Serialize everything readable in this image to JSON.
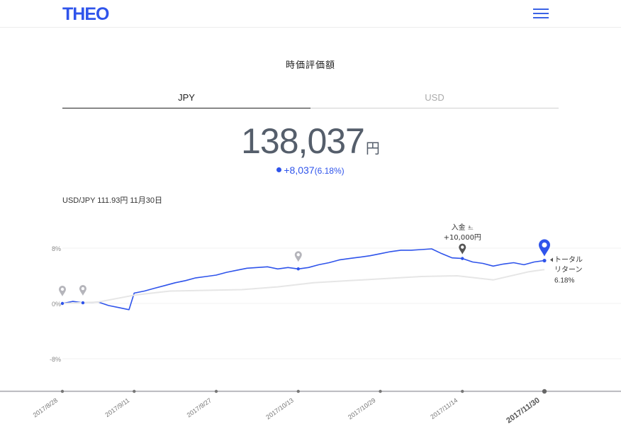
{
  "header": {
    "logo": "THEO",
    "menu_icon": "hamburger-icon"
  },
  "page": {
    "title": "時価評価額"
  },
  "tabs": [
    {
      "label": "JPY",
      "active": true
    },
    {
      "label": "USD",
      "active": false
    }
  ],
  "valuation": {
    "amount": "138,037",
    "unit": "円"
  },
  "change": {
    "amount": "+8,037",
    "percent": "(6.18%)"
  },
  "fx_rate": "USD/JPY 111.93円 11月30日",
  "colors": {
    "accent": "#2f54eb",
    "benchmark": "#e6e6e6",
    "axis": "#888888"
  },
  "chart_data": {
    "type": "line",
    "y_tick_labels": [
      "8%",
      "0%",
      "-8%"
    ],
    "ylim": [
      -12,
      10
    ],
    "x_tick_labels": [
      "2017/8/28",
      "2017/9/11",
      "2017/9/27",
      "2017/10/13",
      "2017/10/29",
      "2017/11/14",
      "2017/11/30"
    ],
    "series": [
      {
        "role": "portfolio",
        "x": [
          "2017/8/28",
          "2017/8/30",
          "2017/9/1",
          "2017/9/4",
          "2017/9/6",
          "2017/9/8",
          "2017/9/10",
          "2017/9/11",
          "2017/9/13",
          "2017/9/15",
          "2017/9/17",
          "2017/9/19",
          "2017/9/21",
          "2017/9/23",
          "2017/9/25",
          "2017/9/27",
          "2017/9/29",
          "2017/10/1",
          "2017/10/3",
          "2017/10/5",
          "2017/10/7",
          "2017/10/9",
          "2017/10/11",
          "2017/10/13",
          "2017/10/15",
          "2017/10/17",
          "2017/10/19",
          "2017/10/21",
          "2017/10/23",
          "2017/10/25",
          "2017/10/27",
          "2017/10/29",
          "2017/10/31",
          "2017/11/2",
          "2017/11/4",
          "2017/11/6",
          "2017/11/8",
          "2017/11/10",
          "2017/11/12",
          "2017/11/14",
          "2017/11/16",
          "2017/11/18",
          "2017/11/20",
          "2017/11/22",
          "2017/11/24",
          "2017/11/26",
          "2017/11/28",
          "2017/11/30"
        ],
        "y": [
          0.0,
          0.3,
          0.1,
          0.2,
          -0.3,
          -0.6,
          -0.9,
          1.5,
          1.8,
          2.2,
          2.6,
          3.0,
          3.3,
          3.7,
          3.9,
          4.1,
          4.5,
          4.8,
          5.1,
          5.2,
          5.3,
          5.0,
          5.2,
          5.0,
          5.2,
          5.6,
          5.9,
          6.3,
          6.5,
          6.7,
          6.9,
          7.2,
          7.5,
          7.7,
          7.7,
          7.8,
          7.9,
          7.2,
          6.6,
          6.5,
          6.0,
          5.8,
          5.4,
          5.7,
          5.9,
          5.6,
          6.0,
          6.2
        ]
      },
      {
        "role": "benchmark",
        "x": [
          "2017/8/28",
          "2017/9/4",
          "2017/9/11",
          "2017/9/18",
          "2017/9/25",
          "2017/10/2",
          "2017/10/9",
          "2017/10/16",
          "2017/10/23",
          "2017/10/30",
          "2017/11/6",
          "2017/11/13",
          "2017/11/20",
          "2017/11/27",
          "2017/11/30"
        ],
        "y": [
          0.0,
          0.2,
          1.2,
          1.8,
          1.9,
          2.0,
          2.4,
          3.0,
          3.3,
          3.6,
          3.9,
          4.0,
          3.4,
          4.6,
          4.9
        ]
      }
    ],
    "annotations": [
      {
        "date": "2017/11/14",
        "title": "入金",
        "amount": "+10,000円"
      },
      {
        "date": "2017/11/30",
        "line1": "トータル",
        "line2": "リターン",
        "value": "6.18%"
      }
    ],
    "event_markers": [
      "2017/8/28",
      "2017/9/1",
      "2017/10/13"
    ],
    "grid": true
  }
}
